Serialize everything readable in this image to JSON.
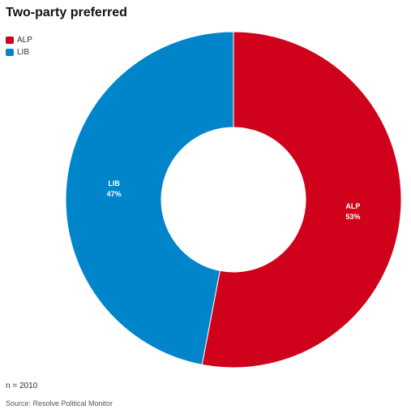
{
  "chart_data": {
    "type": "pie",
    "title": "Two-party preferred",
    "categories": [
      "ALP",
      "LIB"
    ],
    "values": [
      53,
      47
    ],
    "colors": [
      "#d0021b",
      "#0085cb"
    ],
    "data_labels": [
      "53%",
      "47%"
    ],
    "legend": "top-left",
    "donut": true
  },
  "footer": {
    "sample": "n = 2010",
    "source": "Source: Resolve Political Monitor"
  }
}
